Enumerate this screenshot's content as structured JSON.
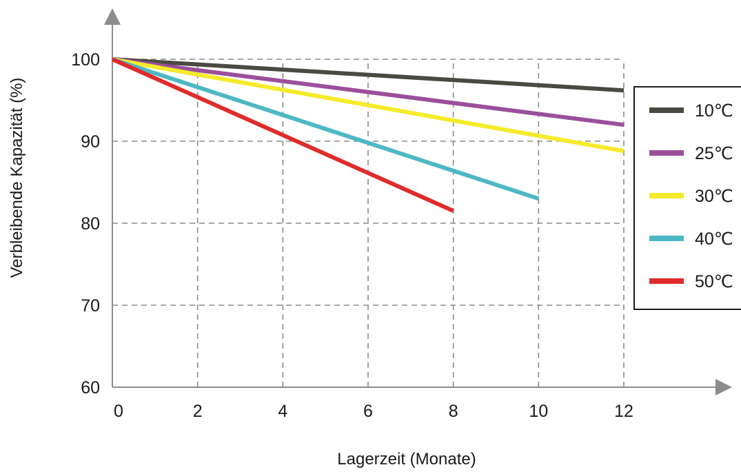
{
  "chart_data": {
    "type": "line",
    "xlabel": "Lagerzeit (Monate)",
    "ylabel": "Verbleibende Kapazität (%)",
    "xlim": [
      0,
      12
    ],
    "ylim": [
      60,
      100
    ],
    "xticks": [
      "0",
      "2",
      "4",
      "6",
      "8",
      "10",
      "12"
    ],
    "yticks": [
      "60",
      "70",
      "80",
      "90",
      "100"
    ],
    "grid": true,
    "legend_position": "right",
    "series": [
      {
        "name": "10℃",
        "color": "#4a4a42",
        "x": [
          0,
          12
        ],
        "y": [
          100,
          96.2
        ]
      },
      {
        "name": "25℃",
        "color": "#9b4f9b",
        "x": [
          0,
          12
        ],
        "y": [
          100,
          92
        ]
      },
      {
        "name": "30℃",
        "color": "#f5eb2a",
        "x": [
          0,
          12
        ],
        "y": [
          100,
          88.8
        ]
      },
      {
        "name": "40℃",
        "color": "#4cb8c4",
        "x": [
          0,
          10
        ],
        "y": [
          100,
          83
        ]
      },
      {
        "name": "50℃",
        "color": "#e02b2b",
        "x": [
          0,
          8
        ],
        "y": [
          100,
          81.5
        ]
      }
    ]
  }
}
